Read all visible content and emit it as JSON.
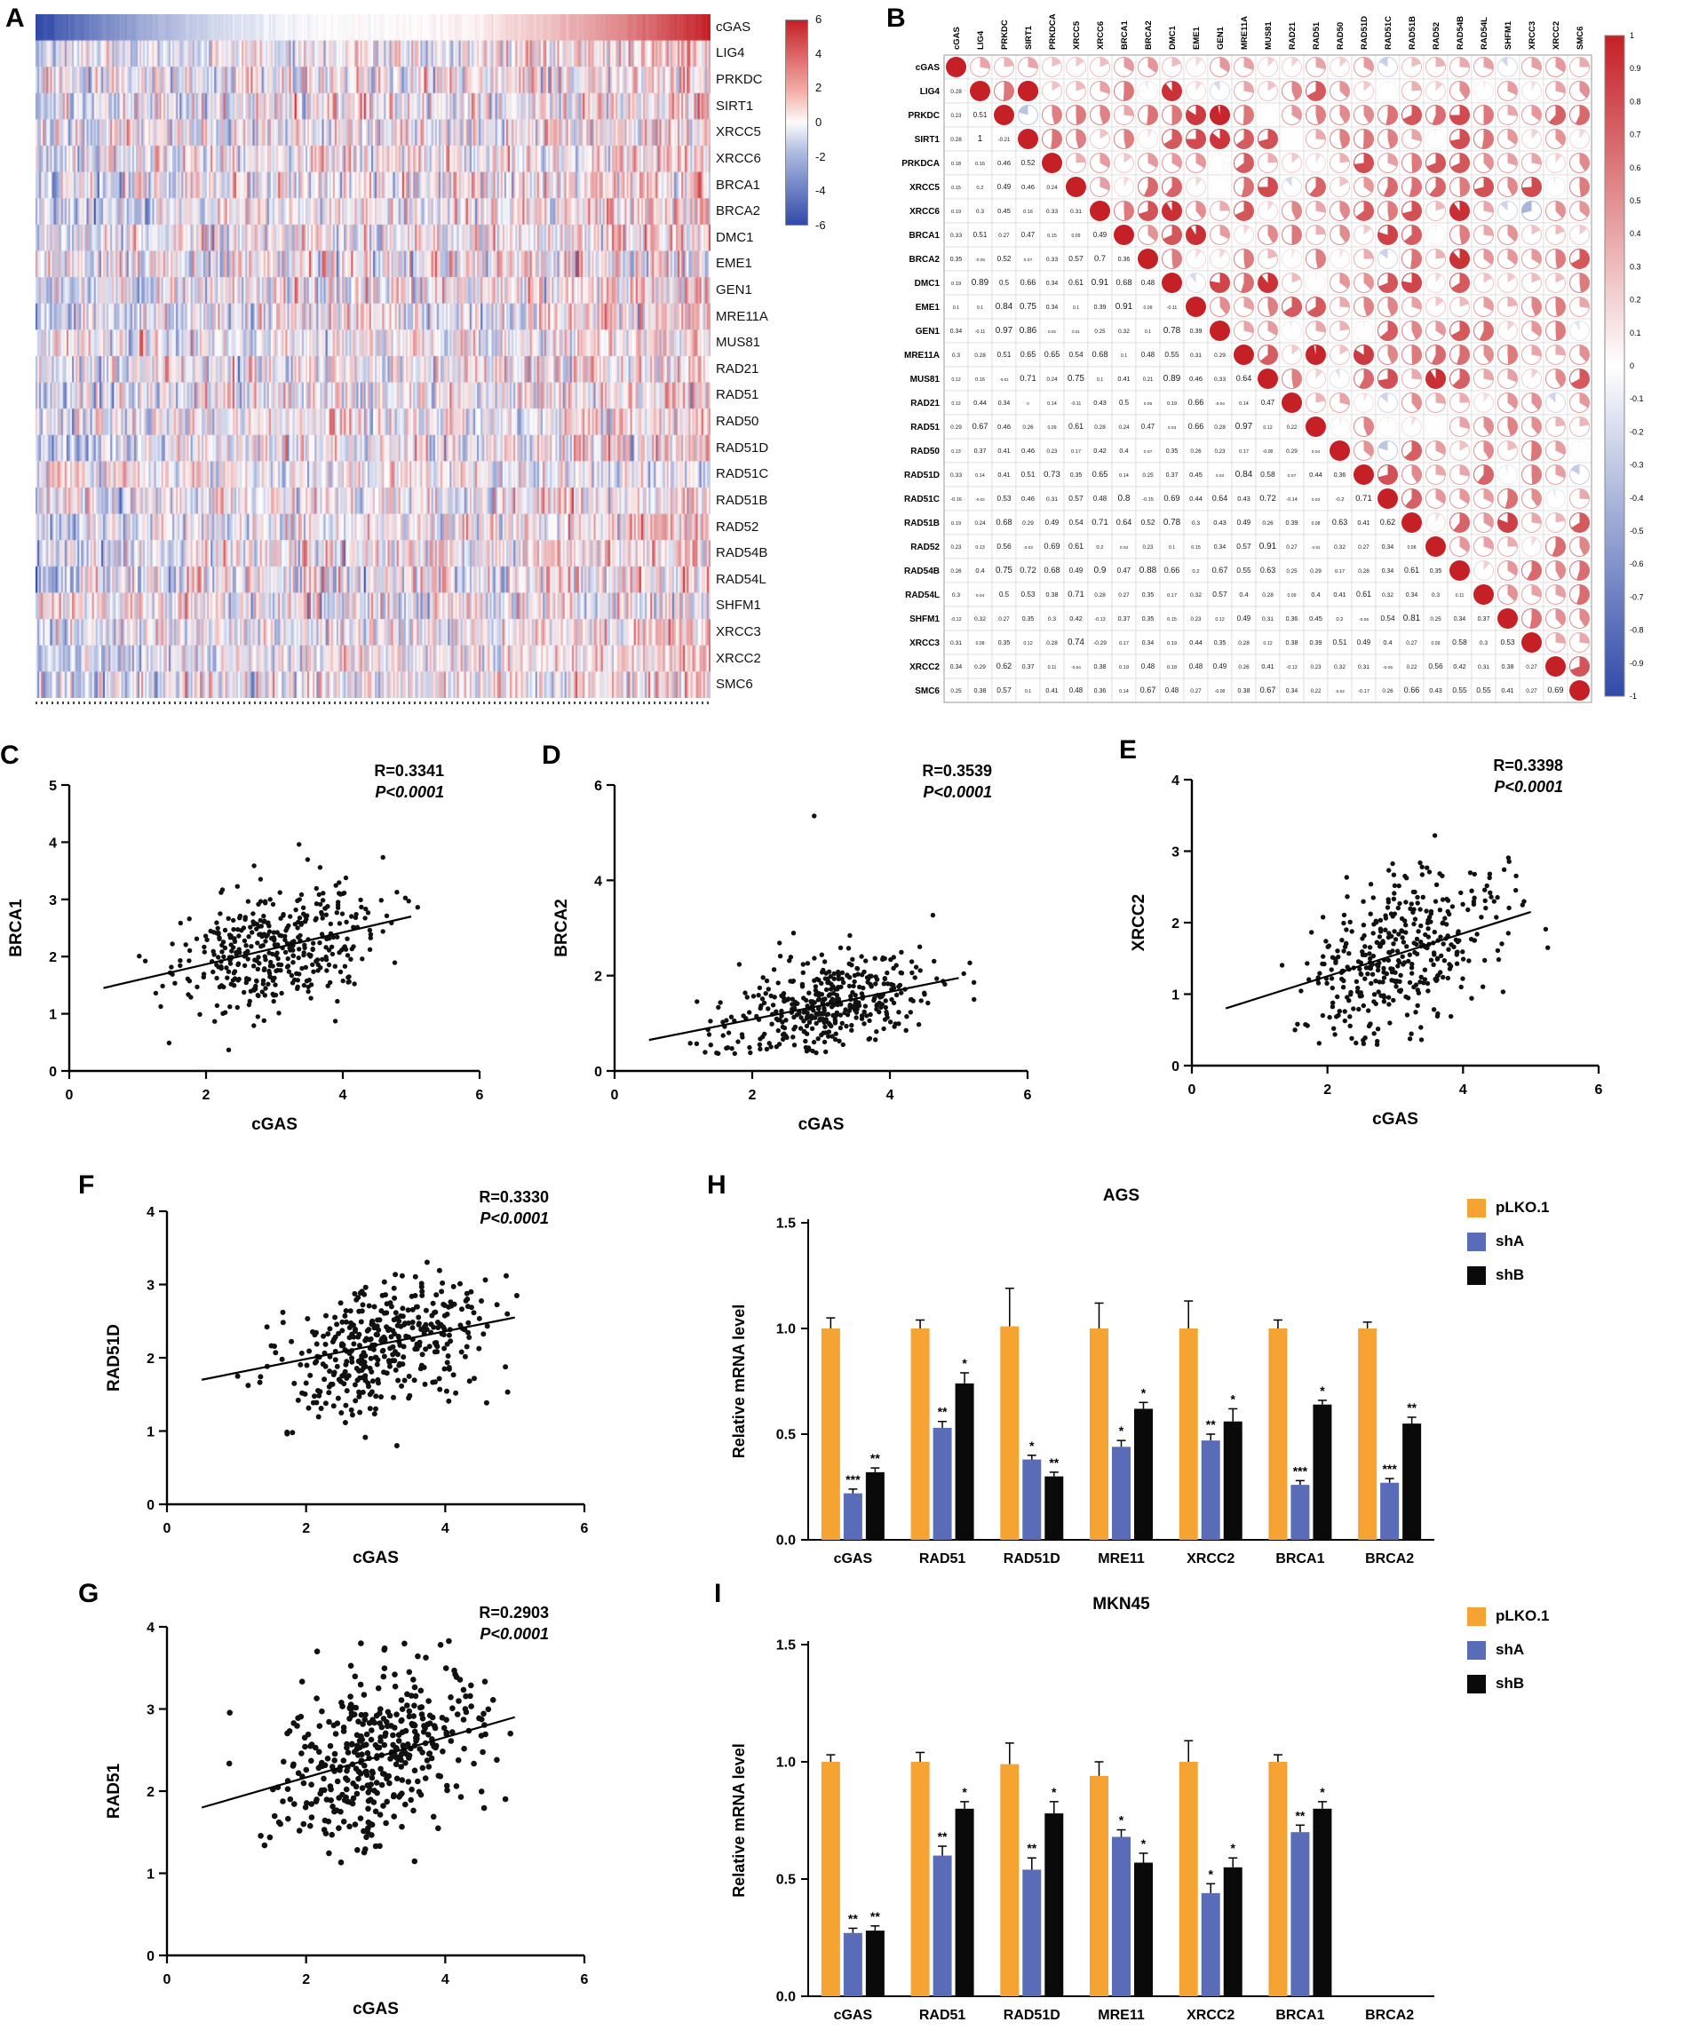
{
  "labels": {
    "a": "A",
    "b": "B",
    "c": "C",
    "d": "D",
    "e": "E",
    "f": "F",
    "g": "G",
    "h": "H",
    "i": "I"
  },
  "legend": {
    "items": [
      {
        "label": "pLKO.1",
        "color": "#F5A333"
      },
      {
        "label": "shA",
        "color": "#5A6BB8"
      },
      {
        "label": "shB",
        "color": "#0A0A0A"
      }
    ]
  },
  "chart_data": [
    {
      "id": "A",
      "type": "heatmap",
      "genes": [
        "cGAS",
        "LIG4",
        "PRKDC",
        "SIRT1",
        "XRCC5",
        "XRCC6",
        "BRCA1",
        "BRCA2",
        "DMC1",
        "EME1",
        "GEN1",
        "MRE11A",
        "MUS81",
        "RAD21",
        "RAD51",
        "RAD50",
        "RAD51D",
        "RAD51C",
        "RAD51B",
        "RAD52",
        "RAD54B",
        "RAD54L",
        "SHFM1",
        "XRCC3",
        "XRCC2",
        "SMC6"
      ],
      "n_samples": 370,
      "sorted_by": "cGAS",
      "value_range": [
        -6,
        6
      ],
      "colorbar_ticks": [
        "6",
        "4",
        "2",
        "0",
        "-2",
        "-4",
        "-6"
      ],
      "row_correlations": [
        1,
        0.28,
        0.23,
        0.28,
        0.15,
        0.19,
        0.33,
        0.35,
        0.19,
        0.1,
        0.34,
        0.3,
        0.12,
        0.12,
        0.29,
        0.13,
        0.33,
        -0.16,
        0.19,
        0.23,
        0.26,
        0.3,
        -0.12,
        0.31,
        0.34,
        0.25
      ],
      "palette": {
        "positive": "#C52026",
        "negative": "#304AA8",
        "zero": "#FFFFFF"
      }
    },
    {
      "id": "B",
      "type": "correlation-matrix",
      "genes": [
        "cGAS",
        "LIG4",
        "PRKDC",
        "SIRT1",
        "PRKDCA",
        "XRCC5",
        "XRCC6",
        "BRCA1",
        "BRCA2",
        "DMC1",
        "EME1",
        "GEN1",
        "MRE11A",
        "MUS81",
        "RAD21",
        "RAD51",
        "RAD50",
        "RAD51D",
        "RAD51C",
        "RAD51B",
        "RAD52",
        "RAD54B",
        "RAD54L",
        "SHFM1",
        "XRCC3",
        "XRCC2",
        "SMC6"
      ],
      "cgas_correlations": [
        1,
        0.28,
        0.23,
        0.28,
        0.18,
        0.15,
        0.19,
        0.33,
        0.35,
        0.19,
        0.1,
        0.34,
        0.3,
        0.12,
        0.12,
        0.29,
        0.13,
        0.33,
        -0.16,
        0.19,
        0.23,
        0.26,
        0.3,
        -0.12,
        0.31,
        0.34,
        0.25
      ],
      "colorbar_ticks": [
        "1",
        "0.9",
        "0.8",
        "0.7",
        "0.6",
        "0.5",
        "0.4",
        "0.3",
        "0.2",
        "0.1",
        "0",
        "-0.1",
        "-0.2",
        "-0.3",
        "-0.4",
        "-0.5",
        "-0.6",
        "-0.7",
        "-0.8",
        "-0.9",
        "-1"
      ],
      "value_range": [
        -1,
        1
      ]
    },
    {
      "id": "C",
      "type": "scatter",
      "xlabel": "cGAS",
      "ylabel": "BRCA1",
      "xlim": [
        0,
        6
      ],
      "ylim": [
        0,
        5
      ],
      "xticks": [
        0,
        2,
        4,
        6
      ],
      "yticks": [
        0,
        1,
        2,
        3,
        4,
        5
      ],
      "r_label": "R=0.3341",
      "p_label": "P<0.0001",
      "trend": {
        "x1": 0.5,
        "y1": 1.45,
        "x2": 5.0,
        "y2": 2.7
      },
      "n_points": 420
    },
    {
      "id": "D",
      "type": "scatter",
      "xlabel": "cGAS",
      "ylabel": "BRCA2",
      "xlim": [
        0,
        6
      ],
      "ylim": [
        0,
        6
      ],
      "xticks": [
        0,
        2,
        4,
        6
      ],
      "yticks": [
        0,
        2,
        4,
        6
      ],
      "r_label": "R=0.3539",
      "p_label": "P<0.0001",
      "trend": {
        "x1": 0.5,
        "y1": 0.65,
        "x2": 5.0,
        "y2": 1.95
      },
      "n_points": 420,
      "outliers": [
        [
          2.9,
          5.35
        ]
      ]
    },
    {
      "id": "E",
      "type": "scatter",
      "xlabel": "cGAS",
      "ylabel": "XRCC2",
      "xlim": [
        0,
        6
      ],
      "ylim": [
        0,
        4
      ],
      "xticks": [
        0,
        2,
        4,
        6
      ],
      "yticks": [
        0,
        1,
        2,
        3,
        4
      ],
      "r_label": "R=0.3398",
      "p_label": "P<0.0001",
      "trend": {
        "x1": 0.5,
        "y1": 0.8,
        "x2": 5.0,
        "y2": 2.15
      },
      "n_points": 400
    },
    {
      "id": "F",
      "type": "scatter",
      "xlabel": "cGAS",
      "ylabel": "RAD51D",
      "xlim": [
        0,
        6
      ],
      "ylim": [
        0,
        4
      ],
      "xticks": [
        0,
        2,
        4,
        6
      ],
      "yticks": [
        0,
        1,
        2,
        3,
        4
      ],
      "r_label": "R=0.3330",
      "p_label": "P<0.0001",
      "trend": {
        "x1": 0.5,
        "y1": 1.7,
        "x2": 5.0,
        "y2": 2.55
      },
      "n_points": 400
    },
    {
      "id": "G",
      "type": "scatter",
      "xlabel": "cGAS",
      "ylabel": "RAD51",
      "xlim": [
        0,
        6
      ],
      "ylim": [
        0,
        4
      ],
      "xticks": [
        0,
        2,
        4,
        6
      ],
      "yticks": [
        0,
        1,
        2,
        3,
        4
      ],
      "r_label": "R=0.2903",
      "p_label": "P<0.0001",
      "trend": {
        "x1": 0.5,
        "y1": 1.8,
        "x2": 5.0,
        "y2": 2.9
      },
      "n_points": 410
    },
    {
      "id": "H",
      "type": "bar",
      "title": "AGS",
      "ylabel": "Relative mRNA level",
      "ylim": [
        0,
        1.5
      ],
      "yticks": [
        {
          "v": 0,
          "label": "0.0"
        },
        {
          "v": 0.5,
          "label": "0.5"
        },
        {
          "v": 1,
          "label": "1.0"
        },
        {
          "v": 1.5,
          "label": "1.5"
        }
      ],
      "categories": [
        "cGAS",
        "RAD51",
        "RAD51D",
        "MRE11",
        "XRCC2",
        "BRCA1",
        "BRCA2"
      ],
      "series": [
        {
          "name": "pLKO.1",
          "color": "#F5A333",
          "values": [
            1.0,
            1.0,
            1.01,
            1.0,
            1.0,
            1.0,
            1.0
          ],
          "err": [
            0.05,
            0.04,
            0.18,
            0.12,
            0.13,
            0.04,
            0.03
          ],
          "stars": [
            null,
            null,
            null,
            null,
            null,
            null,
            null
          ]
        },
        {
          "name": "shA",
          "color": "#5A6BB8",
          "values": [
            0.22,
            0.53,
            0.38,
            0.44,
            0.47,
            0.26,
            0.27
          ],
          "err": [
            0.02,
            0.03,
            0.02,
            0.03,
            0.03,
            0.02,
            0.02
          ],
          "stars": [
            "***",
            "**",
            "*",
            "*",
            "**",
            "***",
            "***"
          ]
        },
        {
          "name": "shB",
          "color": "#0A0A0A",
          "values": [
            0.32,
            0.74,
            0.3,
            0.62,
            0.56,
            0.64,
            0.55
          ],
          "err": [
            0.02,
            0.05,
            0.02,
            0.03,
            0.06,
            0.02,
            0.03
          ],
          "stars": [
            "**",
            "*",
            "**",
            "*",
            "*",
            "*",
            "**"
          ]
        }
      ]
    },
    {
      "id": "I",
      "type": "bar",
      "title": "MKN45",
      "ylabel": "Relative mRNA level",
      "ylim": [
        0,
        1.5
      ],
      "yticks": [
        {
          "v": 0,
          "label": "0.0"
        },
        {
          "v": 0.5,
          "label": "0.5"
        },
        {
          "v": 1,
          "label": "1.0"
        },
        {
          "v": 1.5,
          "label": "1.5"
        }
      ],
      "categories": [
        "cGAS",
        "RAD51",
        "RAD51D",
        "MRE11",
        "XRCC2",
        "BRCA1",
        "BRCA2"
      ],
      "series": [
        {
          "name": "pLKO.1",
          "color": "#F5A333",
          "values": [
            1.0,
            1.0,
            0.99,
            0.94,
            1.0,
            1.0,
            null
          ],
          "err": [
            0.03,
            0.04,
            0.09,
            0.06,
            0.09,
            0.03,
            null
          ],
          "stars": [
            null,
            null,
            null,
            null,
            null,
            null,
            null
          ]
        },
        {
          "name": "shA",
          "color": "#5A6BB8",
          "values": [
            0.27,
            0.6,
            0.54,
            0.68,
            0.44,
            0.7,
            null
          ],
          "err": [
            0.02,
            0.04,
            0.05,
            0.03,
            0.04,
            0.03,
            null
          ],
          "stars": [
            "**",
            "**",
            "**",
            "*",
            "*",
            "**",
            null
          ]
        },
        {
          "name": "shB",
          "color": "#0A0A0A",
          "values": [
            0.28,
            0.8,
            0.78,
            0.57,
            0.55,
            0.8,
            null
          ],
          "err": [
            0.02,
            0.03,
            0.05,
            0.04,
            0.04,
            0.03,
            null
          ],
          "stars": [
            "**",
            "*",
            "*",
            "*",
            "*",
            "*",
            null
          ]
        }
      ]
    }
  ]
}
